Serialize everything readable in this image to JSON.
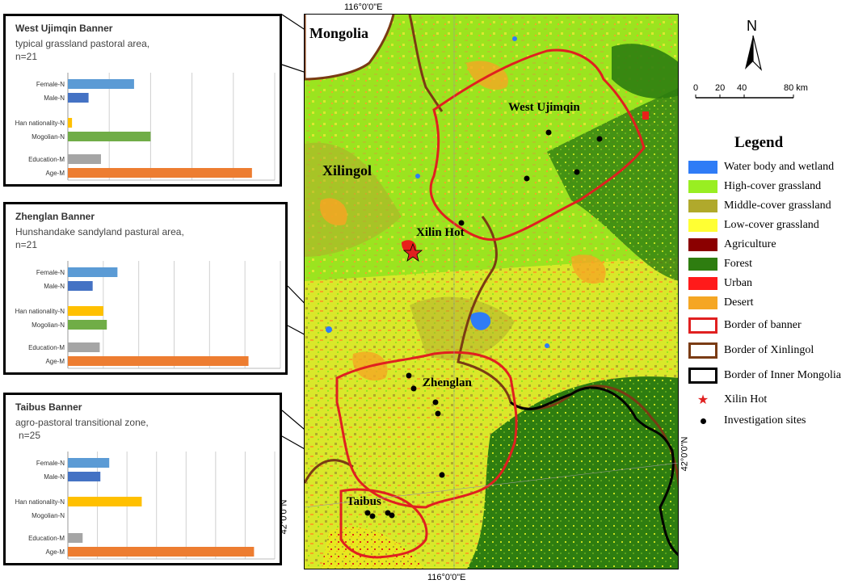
{
  "insets": [
    {
      "title": "West Ujimqin Banner",
      "subtitle": "typical grassland pastoral area,",
      "n_label": "n=21",
      "chart_data": {
        "type": "bar",
        "orientation": "horizontal",
        "categories": [
          "Female-N",
          "Male-N",
          "Han nationality-N",
          "Mogolian-N",
          "Education-M",
          "Age-M"
        ],
        "values": [
          16,
          5,
          1,
          20,
          8,
          44.5
        ],
        "colors": [
          "#5b9bd5",
          "#4472c4",
          "#ffc000",
          "#70ad47",
          "#a5a5a5",
          "#ed7d31"
        ],
        "xlim": [
          0,
          50
        ],
        "ticks": [
          "0",
          "10",
          "20",
          "30",
          "40",
          "50"
        ],
        "grid": true
      }
    },
    {
      "title": "Zhenglan Banner",
      "subtitle": "Hunshandake sandyland pastural area,",
      "n_label": "n=21",
      "chart_data": {
        "type": "bar",
        "orientation": "horizontal",
        "categories": [
          "Female-N",
          "Male-N",
          "Han nationality-N",
          "Mogolian-N",
          "Education-M",
          "Age-M"
        ],
        "values": [
          14,
          7,
          10,
          11,
          9,
          51
        ],
        "colors": [
          "#5b9bd5",
          "#4472c4",
          "#ffc000",
          "#70ad47",
          "#a5a5a5",
          "#ed7d31"
        ],
        "xlim": [
          0,
          60
        ],
        "ticks": [
          "0",
          "10",
          "20",
          "30",
          "40",
          "50",
          "60"
        ],
        "grid": true
      }
    },
    {
      "title": "Taibus Banner",
      "subtitle": "agro-pastoral transitional zone,",
      "n_label": "n=25",
      "chart_data": {
        "type": "bar",
        "orientation": "horizontal",
        "categories": [
          "Female-N",
          "Male-N",
          "Han nationality-N",
          "Mogolian-N",
          "Education-M",
          "Age-M"
        ],
        "values": [
          14,
          11,
          25,
          0,
          5,
          63
        ],
        "colors": [
          "#5b9bd5",
          "#4472c4",
          "#ffc000",
          "#70ad47",
          "#a5a5a5",
          "#ed7d31"
        ],
        "xlim": [
          0,
          70
        ],
        "ticks": [
          "0",
          "10",
          "20",
          "30",
          "40",
          "50",
          "60",
          "70"
        ],
        "grid": true
      }
    }
  ],
  "map": {
    "coord_top": "116°0'0\"E",
    "coord_bottom": "116°0'0\"E",
    "coord_left": "42°0'0\"N",
    "coord_right": "42°0'0\"N",
    "labels": {
      "mongolia": "Mongolia",
      "xilingol": "Xilingol",
      "west_ujimqin": "West Ujimqin",
      "xilin_hot": "Xilin Hot",
      "zhenglan": "Zhenglan",
      "taibus": "Taibus"
    },
    "investigation_sites_count": 14
  },
  "north_arrow": {
    "label": "N"
  },
  "scale_bar": {
    "ticks": [
      "0",
      "20",
      "40",
      "80 km"
    ]
  },
  "legend": {
    "title": "Legend",
    "items": [
      {
        "label": "Water body and wetland",
        "color": "#2f7cf6",
        "kind": "fill"
      },
      {
        "label": "High-cover grassland",
        "color": "#99ee22",
        "kind": "fill"
      },
      {
        "label": "Middle-cover grassland",
        "color": "#b0a92c",
        "kind": "fill"
      },
      {
        "label": "Low-cover grassland",
        "color": "#ffff33",
        "kind": "fill"
      },
      {
        "label": "Agriculture",
        "color": "#8b0000",
        "kind": "fill"
      },
      {
        "label": "Forest",
        "color": "#2e7d10",
        "kind": "fill"
      },
      {
        "label": "Urban",
        "color": "#ff1a1a",
        "kind": "fill"
      },
      {
        "label": "Desert",
        "color": "#f5a623",
        "kind": "fill"
      },
      {
        "label": "Border of banner",
        "color": "#e02020",
        "kind": "border"
      },
      {
        "label": "Border of Xinlingol",
        "color": "#7a3b14",
        "kind": "border"
      },
      {
        "label": "Border of Inner Mongolia",
        "color": "#000000",
        "kind": "border"
      },
      {
        "label": "Xilin Hot",
        "color": "#e02020",
        "kind": "star"
      },
      {
        "label": "Investigation sites",
        "color": "#000000",
        "kind": "dot"
      }
    ]
  }
}
